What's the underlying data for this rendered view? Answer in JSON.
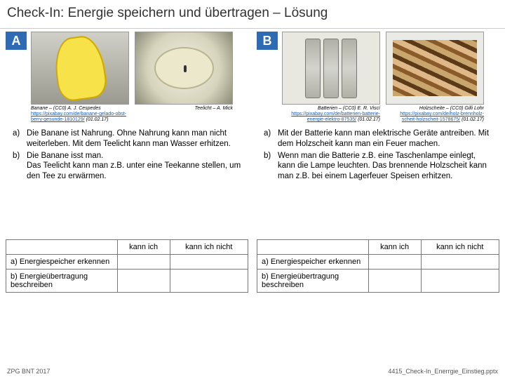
{
  "title": "Check-In: Energie speichern und übertragen – Lösung",
  "colA": {
    "badge": "A",
    "img1_credit_line1": "Banane – (CC0) A. J. Cespedes",
    "img1_credit_link": "https://pixabay.com/de/banane-gelado-obst-berry-gesunde-1810129/",
    "img1_credit_date": "(01.02.17)",
    "img2_credit": "Teelicht – A. Mick",
    "ans_a": "Die Banane ist Nahrung. Ohne Nahrung kann man nicht weiterleben. Mit dem Teelicht kann man Wasser erhitzen.",
    "ans_b": "Die Banane isst man.\nDas Teelicht kann man z.B. unter eine Teekanne stellen, um den Tee zu erwärmen.",
    "row1": "a) Energiespeicher erkennen",
    "row2": "b) Energieübertragung beschreiben"
  },
  "colB": {
    "badge": "B",
    "img1_credit_line1": "Batterien – (CC0) E. R. Viscí",
    "img1_credit_link": "https://pixabay.com/de/batterien-batterie-energie-elektro-87535/",
    "img1_credit_date": "(01.02.17)",
    "img2_credit_line1": "Holzscheite – (CC0) Gilli Lohr",
    "img2_credit_link": "https://pixabay.com/de/holz-brennholz-scheit-holzscheit-1578675/",
    "img2_credit_date": "(01.02.17)",
    "ans_a": "Mit der Batterie kann man elektrische Geräte antreiben. Mit dem Holzscheit kann man ein Feuer machen.",
    "ans_b": "Wenn man die Batterie z.B. eine Taschenlampe einlegt, kann die Lampe leuchten. Das brennende Holzscheit kann man z.B. bei einem Lagerfeuer Speisen erhitzen.",
    "row1": "a) Energiespeicher erkennen",
    "row2": "b) Energieübertragung beschreiben"
  },
  "grid": {
    "h1": "kann ich",
    "h2": "kann ich nicht"
  },
  "footer_left": "ZPG BNT 2017",
  "footer_right": "4415_Check-In_Enerrgie_Einstieg.pptx"
}
